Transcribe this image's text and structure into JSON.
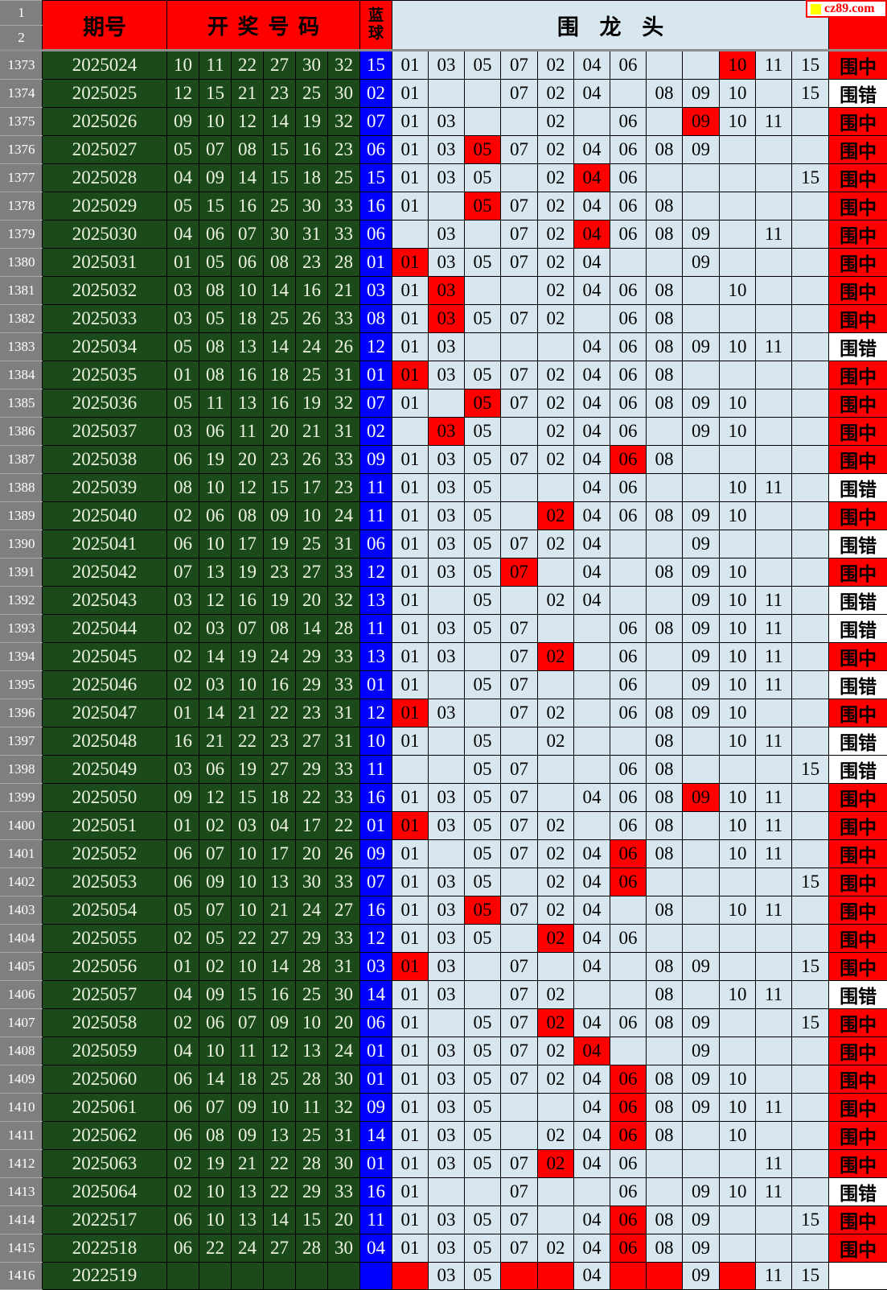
{
  "site_badge": {
    "text": "cz89.com",
    "square_color": "#ffff00",
    "text_color": "#ff0000"
  },
  "header": {
    "row1_label": "1",
    "row2_label": "2",
    "period_label": "期号",
    "numbers_label": "开奖号码",
    "blue_label_top": "蓝",
    "blue_label_bottom": "球",
    "dragon_title": "围 龙 头"
  },
  "dragon_columns": [
    "01",
    "03",
    "05",
    "07",
    "02",
    "04",
    "06",
    "08",
    "09",
    "10",
    "11",
    "15"
  ],
  "result_labels": {
    "hit": "围中",
    "miss": "围错"
  },
  "colors": {
    "header_red": "#ff0000",
    "highlight_red": "#ff0000",
    "dark_green": "#1b4a1b",
    "blue_ball": "#0000fe",
    "light_blue": "#d8e7ef",
    "index_gray": "#7f7f7f"
  },
  "rows": [
    {
      "index": "1373",
      "period": "2025024",
      "balls": [
        "10",
        "11",
        "22",
        "27",
        "30",
        "32"
      ],
      "blue": "15",
      "grid": [
        "01",
        "03",
        "05",
        "07",
        "02",
        "04",
        "06",
        "",
        "",
        "*10",
        "11",
        "15"
      ],
      "result": "hit"
    },
    {
      "index": "1374",
      "period": "2025025",
      "balls": [
        "12",
        "15",
        "21",
        "23",
        "25",
        "30"
      ],
      "blue": "02",
      "grid": [
        "01",
        "",
        "",
        "07",
        "02",
        "04",
        "",
        "08",
        "09",
        "10",
        "",
        "15"
      ],
      "result": "miss"
    },
    {
      "index": "1375",
      "period": "2025026",
      "balls": [
        "09",
        "10",
        "12",
        "14",
        "19",
        "32"
      ],
      "blue": "07",
      "grid": [
        "01",
        "03",
        "",
        "",
        "02",
        "",
        "06",
        "",
        "*09",
        "10",
        "11",
        ""
      ],
      "result": "hit"
    },
    {
      "index": "1376",
      "period": "2025027",
      "balls": [
        "05",
        "07",
        "08",
        "15",
        "16",
        "23"
      ],
      "blue": "06",
      "grid": [
        "01",
        "03",
        "*05",
        "07",
        "02",
        "04",
        "06",
        "08",
        "09",
        "",
        "",
        ""
      ],
      "result": "hit"
    },
    {
      "index": "1377",
      "period": "2025028",
      "balls": [
        "04",
        "09",
        "14",
        "15",
        "18",
        "25"
      ],
      "blue": "15",
      "grid": [
        "01",
        "03",
        "05",
        "",
        "02",
        "*04",
        "06",
        "",
        "",
        "",
        "",
        "15"
      ],
      "result": "hit"
    },
    {
      "index": "1378",
      "period": "2025029",
      "balls": [
        "05",
        "15",
        "16",
        "25",
        "30",
        "33"
      ],
      "blue": "16",
      "grid": [
        "01",
        "",
        "*05",
        "07",
        "02",
        "04",
        "06",
        "08",
        "",
        "",
        "",
        ""
      ],
      "result": "hit"
    },
    {
      "index": "1379",
      "period": "2025030",
      "balls": [
        "04",
        "06",
        "07",
        "30",
        "31",
        "33"
      ],
      "blue": "06",
      "grid": [
        "",
        "03",
        "",
        "07",
        "02",
        "*04",
        "06",
        "08",
        "09",
        "",
        "11",
        ""
      ],
      "result": "hit"
    },
    {
      "index": "1380",
      "period": "2025031",
      "balls": [
        "01",
        "05",
        "06",
        "08",
        "23",
        "28"
      ],
      "blue": "01",
      "grid": [
        "*01",
        "03",
        "05",
        "07",
        "02",
        "04",
        "",
        "",
        "09",
        "",
        "",
        ""
      ],
      "result": "hit"
    },
    {
      "index": "1381",
      "period": "2025032",
      "balls": [
        "03",
        "08",
        "10",
        "14",
        "16",
        "21"
      ],
      "blue": "03",
      "grid": [
        "01",
        "*03",
        "",
        "",
        "02",
        "04",
        "06",
        "08",
        "",
        "10",
        "",
        ""
      ],
      "result": "hit"
    },
    {
      "index": "1382",
      "period": "2025033",
      "balls": [
        "03",
        "05",
        "18",
        "25",
        "26",
        "33"
      ],
      "blue": "08",
      "grid": [
        "01",
        "*03",
        "05",
        "07",
        "02",
        "",
        "06",
        "08",
        "",
        "",
        "",
        ""
      ],
      "result": "hit"
    },
    {
      "index": "1383",
      "period": "2025034",
      "balls": [
        "05",
        "08",
        "13",
        "14",
        "24",
        "26"
      ],
      "blue": "12",
      "grid": [
        "01",
        "03",
        "",
        "",
        "",
        "04",
        "06",
        "08",
        "09",
        "10",
        "11",
        ""
      ],
      "result": "miss"
    },
    {
      "index": "1384",
      "period": "2025035",
      "balls": [
        "01",
        "08",
        "16",
        "18",
        "25",
        "31"
      ],
      "blue": "01",
      "grid": [
        "*01",
        "03",
        "05",
        "07",
        "02",
        "04",
        "06",
        "08",
        "",
        "",
        "",
        ""
      ],
      "result": "hit"
    },
    {
      "index": "1385",
      "period": "2025036",
      "balls": [
        "05",
        "11",
        "13",
        "16",
        "19",
        "32"
      ],
      "blue": "07",
      "grid": [
        "01",
        "",
        "*05",
        "07",
        "02",
        "04",
        "06",
        "08",
        "09",
        "10",
        "",
        ""
      ],
      "result": "hit"
    },
    {
      "index": "1386",
      "period": "2025037",
      "balls": [
        "03",
        "06",
        "11",
        "20",
        "21",
        "31"
      ],
      "blue": "02",
      "grid": [
        "",
        "*03",
        "05",
        "",
        "02",
        "04",
        "06",
        "",
        "09",
        "10",
        "",
        ""
      ],
      "result": "hit"
    },
    {
      "index": "1387",
      "period": "2025038",
      "balls": [
        "06",
        "19",
        "20",
        "23",
        "26",
        "33"
      ],
      "blue": "09",
      "grid": [
        "01",
        "03",
        "05",
        "07",
        "02",
        "04",
        "*06",
        "08",
        "",
        "",
        "",
        ""
      ],
      "result": "hit"
    },
    {
      "index": "1388",
      "period": "2025039",
      "balls": [
        "08",
        "10",
        "12",
        "15",
        "17",
        "23"
      ],
      "blue": "11",
      "grid": [
        "01",
        "03",
        "05",
        "",
        "",
        "04",
        "06",
        "",
        "",
        "10",
        "11",
        ""
      ],
      "result": "miss"
    },
    {
      "index": "1389",
      "period": "2025040",
      "balls": [
        "02",
        "06",
        "08",
        "09",
        "10",
        "24"
      ],
      "blue": "11",
      "grid": [
        "01",
        "03",
        "05",
        "",
        "*02",
        "04",
        "06",
        "08",
        "09",
        "10",
        "",
        ""
      ],
      "result": "hit"
    },
    {
      "index": "1390",
      "period": "2025041",
      "balls": [
        "06",
        "10",
        "17",
        "19",
        "25",
        "31"
      ],
      "blue": "06",
      "grid": [
        "01",
        "03",
        "05",
        "07",
        "02",
        "04",
        "",
        "",
        "09",
        "",
        "",
        ""
      ],
      "result": "miss"
    },
    {
      "index": "1391",
      "period": "2025042",
      "balls": [
        "07",
        "13",
        "19",
        "23",
        "27",
        "33"
      ],
      "blue": "12",
      "grid": [
        "01",
        "03",
        "05",
        "*07",
        "",
        "04",
        "",
        "08",
        "09",
        "10",
        "",
        ""
      ],
      "result": "hit"
    },
    {
      "index": "1392",
      "period": "2025043",
      "balls": [
        "03",
        "12",
        "16",
        "19",
        "20",
        "32"
      ],
      "blue": "13",
      "grid": [
        "01",
        "",
        "05",
        "",
        "02",
        "04",
        "",
        "",
        "09",
        "10",
        "11",
        ""
      ],
      "result": "miss"
    },
    {
      "index": "1393",
      "period": "2025044",
      "balls": [
        "02",
        "03",
        "07",
        "08",
        "14",
        "28"
      ],
      "blue": "11",
      "grid": [
        "01",
        "03",
        "05",
        "07",
        "",
        "",
        "06",
        "08",
        "09",
        "10",
        "11",
        ""
      ],
      "result": "miss"
    },
    {
      "index": "1394",
      "period": "2025045",
      "balls": [
        "02",
        "14",
        "19",
        "24",
        "29",
        "33"
      ],
      "blue": "13",
      "grid": [
        "01",
        "03",
        "",
        "07",
        "*02",
        "",
        "06",
        "",
        "09",
        "10",
        "11",
        ""
      ],
      "result": "hit"
    },
    {
      "index": "1395",
      "period": "2025046",
      "balls": [
        "02",
        "03",
        "10",
        "16",
        "29",
        "33"
      ],
      "blue": "01",
      "grid": [
        "01",
        "",
        "05",
        "07",
        "",
        "",
        "06",
        "",
        "09",
        "10",
        "11",
        ""
      ],
      "result": "miss"
    },
    {
      "index": "1396",
      "period": "2025047",
      "balls": [
        "01",
        "14",
        "21",
        "22",
        "23",
        "31"
      ],
      "blue": "12",
      "grid": [
        "*01",
        "03",
        "",
        "07",
        "02",
        "",
        "06",
        "08",
        "09",
        "10",
        "",
        ""
      ],
      "result": "hit"
    },
    {
      "index": "1397",
      "period": "2025048",
      "balls": [
        "16",
        "21",
        "22",
        "23",
        "27",
        "31"
      ],
      "blue": "10",
      "grid": [
        "01",
        "",
        "05",
        "",
        "02",
        "",
        "",
        "08",
        "",
        "10",
        "11",
        ""
      ],
      "result": "miss"
    },
    {
      "index": "1398",
      "period": "2025049",
      "balls": [
        "03",
        "06",
        "19",
        "27",
        "29",
        "33"
      ],
      "blue": "11",
      "grid": [
        "",
        "",
        "05",
        "07",
        "",
        "",
        "06",
        "08",
        "",
        "",
        "",
        "15"
      ],
      "result": "miss"
    },
    {
      "index": "1399",
      "period": "2025050",
      "balls": [
        "09",
        "12",
        "15",
        "18",
        "22",
        "33"
      ],
      "blue": "16",
      "grid": [
        "01",
        "03",
        "05",
        "07",
        "",
        "04",
        "06",
        "08",
        "*09",
        "10",
        "11",
        ""
      ],
      "result": "hit"
    },
    {
      "index": "1400",
      "period": "2025051",
      "balls": [
        "01",
        "02",
        "03",
        "04",
        "17",
        "22"
      ],
      "blue": "01",
      "grid": [
        "*01",
        "03",
        "05",
        "07",
        "02",
        "",
        "06",
        "08",
        "",
        "10",
        "11",
        ""
      ],
      "result": "hit"
    },
    {
      "index": "1401",
      "period": "2025052",
      "balls": [
        "06",
        "07",
        "10",
        "17",
        "20",
        "26"
      ],
      "blue": "09",
      "grid": [
        "01",
        "",
        "05",
        "07",
        "02",
        "04",
        "*06",
        "08",
        "",
        "10",
        "11",
        ""
      ],
      "result": "hit"
    },
    {
      "index": "1402",
      "period": "2025053",
      "balls": [
        "06",
        "09",
        "10",
        "13",
        "30",
        "33"
      ],
      "blue": "07",
      "grid": [
        "01",
        "03",
        "05",
        "",
        "02",
        "04",
        "*06",
        "",
        "",
        "",
        "",
        "15"
      ],
      "result": "hit"
    },
    {
      "index": "1403",
      "period": "2025054",
      "balls": [
        "05",
        "07",
        "10",
        "21",
        "24",
        "27"
      ],
      "blue": "16",
      "grid": [
        "01",
        "03",
        "*05",
        "07",
        "02",
        "04",
        "",
        "08",
        "",
        "10",
        "11",
        ""
      ],
      "result": "hit"
    },
    {
      "index": "1404",
      "period": "2025055",
      "balls": [
        "02",
        "05",
        "22",
        "27",
        "29",
        "33"
      ],
      "blue": "12",
      "grid": [
        "01",
        "03",
        "05",
        "",
        "*02",
        "04",
        "06",
        "",
        "",
        "",
        "",
        ""
      ],
      "result": "hit"
    },
    {
      "index": "1405",
      "period": "2025056",
      "balls": [
        "01",
        "02",
        "10",
        "14",
        "28",
        "31"
      ],
      "blue": "03",
      "grid": [
        "*01",
        "03",
        "",
        "07",
        "",
        "04",
        "",
        "08",
        "09",
        "",
        "",
        "15"
      ],
      "result": "hit"
    },
    {
      "index": "1406",
      "period": "2025057",
      "balls": [
        "04",
        "09",
        "15",
        "16",
        "25",
        "30"
      ],
      "blue": "14",
      "grid": [
        "01",
        "03",
        "",
        "07",
        "02",
        "",
        "",
        "08",
        "",
        "10",
        "11",
        ""
      ],
      "result": "miss"
    },
    {
      "index": "1407",
      "period": "2025058",
      "balls": [
        "02",
        "06",
        "07",
        "09",
        "10",
        "20"
      ],
      "blue": "06",
      "grid": [
        "01",
        "",
        "05",
        "07",
        "*02",
        "04",
        "06",
        "08",
        "09",
        "",
        "",
        "15"
      ],
      "result": "hit"
    },
    {
      "index": "1408",
      "period": "2025059",
      "balls": [
        "04",
        "10",
        "11",
        "12",
        "13",
        "24"
      ],
      "blue": "01",
      "grid": [
        "01",
        "03",
        "05",
        "07",
        "02",
        "*04",
        "",
        "",
        "09",
        "",
        "",
        ""
      ],
      "result": "hit"
    },
    {
      "index": "1409",
      "period": "2025060",
      "balls": [
        "06",
        "14",
        "18",
        "25",
        "28",
        "30"
      ],
      "blue": "01",
      "grid": [
        "01",
        "03",
        "05",
        "07",
        "02",
        "04",
        "*06",
        "08",
        "09",
        "10",
        "",
        ""
      ],
      "result": "hit"
    },
    {
      "index": "1410",
      "period": "2025061",
      "balls": [
        "06",
        "07",
        "09",
        "10",
        "11",
        "32"
      ],
      "blue": "09",
      "grid": [
        "01",
        "03",
        "05",
        "",
        "",
        "04",
        "*06",
        "08",
        "09",
        "10",
        "11",
        ""
      ],
      "result": "hit"
    },
    {
      "index": "1411",
      "period": "2025062",
      "balls": [
        "06",
        "08",
        "09",
        "13",
        "25",
        "31"
      ],
      "blue": "14",
      "grid": [
        "01",
        "03",
        "05",
        "",
        "02",
        "04",
        "*06",
        "08",
        "",
        "10",
        "",
        ""
      ],
      "result": "hit"
    },
    {
      "index": "1412",
      "period": "2025063",
      "balls": [
        "02",
        "19",
        "21",
        "22",
        "28",
        "30"
      ],
      "blue": "01",
      "grid": [
        "01",
        "03",
        "05",
        "07",
        "*02",
        "04",
        "06",
        "",
        "",
        "",
        "11",
        ""
      ],
      "result": "hit"
    },
    {
      "index": "1413",
      "period": "2025064",
      "balls": [
        "02",
        "10",
        "13",
        "22",
        "29",
        "33"
      ],
      "blue": "16",
      "grid": [
        "01",
        "",
        "",
        "07",
        "",
        "",
        "06",
        "",
        "09",
        "10",
        "11",
        ""
      ],
      "result": "miss"
    },
    {
      "index": "1414",
      "period": "2022517",
      "balls": [
        "06",
        "10",
        "13",
        "14",
        "15",
        "20"
      ],
      "blue": "11",
      "grid": [
        "01",
        "03",
        "05",
        "07",
        "",
        "04",
        "*06",
        "08",
        "09",
        "",
        "",
        "15"
      ],
      "result": "hit"
    },
    {
      "index": "1415",
      "period": "2022518",
      "balls": [
        "06",
        "22",
        "24",
        "27",
        "28",
        "30"
      ],
      "blue": "04",
      "grid": [
        "01",
        "03",
        "05",
        "07",
        "02",
        "04",
        "*06",
        "08",
        "09",
        "",
        "",
        ""
      ],
      "result": "hit"
    },
    {
      "index": "1416",
      "period": "2022519",
      "balls": [
        "",
        "",
        "",
        "",
        "",
        ""
      ],
      "blue": "",
      "grid": [
        "*",
        "03",
        "05",
        "*",
        "*",
        "04",
        "*",
        "*",
        "09",
        "*",
        "11",
        "15"
      ],
      "result": ""
    }
  ]
}
